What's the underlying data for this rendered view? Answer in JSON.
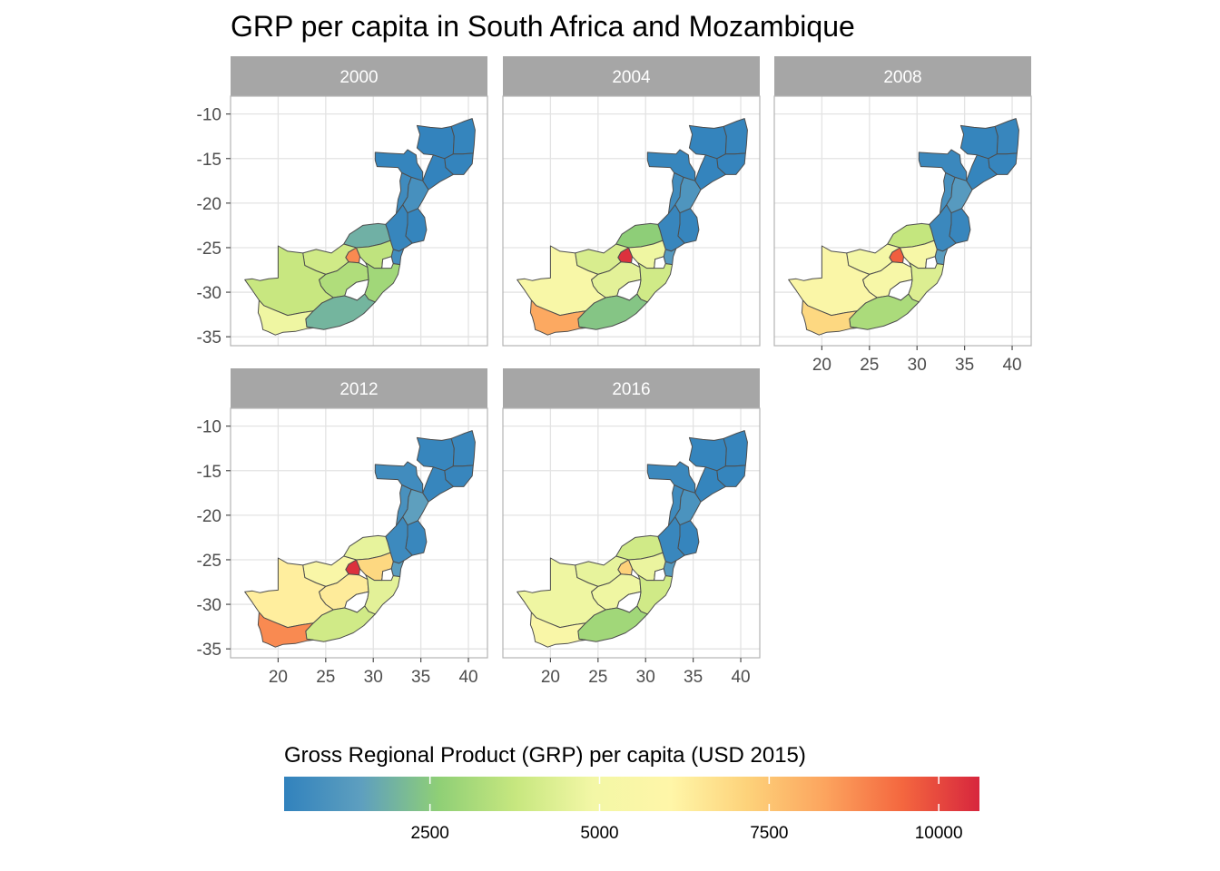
{
  "title": "GRP per capita in South Africa and Mozambique",
  "chart_data": {
    "type": "choropleth-facets",
    "title": "GRP per capita in South Africa and Mozambique",
    "xlim": [
      15,
      42
    ],
    "ylim": [
      -36,
      -8
    ],
    "x_ticks": [
      20,
      25,
      30,
      35,
      40
    ],
    "x_tick_labels": [
      "20",
      "25",
      "30",
      "35",
      "40"
    ],
    "y_ticks": [
      -10,
      -15,
      -20,
      -25,
      -30,
      -35
    ],
    "y_tick_labels": [
      "-10",
      "-15",
      "-20",
      "-25",
      "-30",
      "-35"
    ],
    "grid": true,
    "legend": {
      "title": "Gross Regional Product (GRP) per capita (USD 2015)",
      "placement": "bottom",
      "min": 350,
      "max": 10600,
      "ticks": [
        2500,
        5000,
        7500,
        10000
      ],
      "tick_labels": [
        "2500",
        "5000",
        "7500",
        "10000"
      ],
      "palette": [
        "#3182bd",
        "#5e9fbf",
        "#8fcf76",
        "#c7e77f",
        "#f3f7a6",
        "#fff6a8",
        "#fdd27a",
        "#fca45e",
        "#f4673f",
        "#d7263d"
      ]
    },
    "facets": [
      {
        "label": "2000",
        "values": {
          "Niassa": 400,
          "Cabo Delgado": 450,
          "Nampula": 420,
          "Tete": 450,
          "Zambezia": 400,
          "Manica": 700,
          "Sofala": 900,
          "Inhambane": 450,
          "Gaza": 500,
          "Maputo": 800,
          "Western Cape": 4800,
          "Northern Cape": 3800,
          "Eastern Cape": 2000,
          "Free State": 3300,
          "KwaZulu-Natal": 3000,
          "North West": 4000,
          "Gauteng": 8800,
          "Mpumalanga": 3600,
          "Limpopo": 1900
        }
      },
      {
        "label": "2004",
        "values": {
          "Niassa": 420,
          "Cabo Delgado": 480,
          "Nampula": 440,
          "Tete": 500,
          "Zambezia": 420,
          "Manica": 750,
          "Sofala": 1100,
          "Inhambane": 480,
          "Gaza": 520,
          "Maputo": 1300,
          "Western Cape": 8200,
          "Northern Cape": 5400,
          "Eastern Cape": 2400,
          "Free State": 4500,
          "KwaZulu-Natal": 4000,
          "North West": 4200,
          "Gauteng": 10400,
          "Mpumalanga": 4800,
          "Limpopo": 2600
        }
      },
      {
        "label": "2008",
        "values": {
          "Niassa": 450,
          "Cabo Delgado": 520,
          "Nampula": 480,
          "Tete": 600,
          "Zambezia": 450,
          "Manica": 900,
          "Sofala": 1300,
          "Inhambane": 520,
          "Gaza": 600,
          "Maputo": 1400,
          "Western Cape": 7000,
          "Northern Cape": 5600,
          "Eastern Cape": 3200,
          "Free State": 5300,
          "KwaZulu-Natal": 4300,
          "North West": 5000,
          "Gauteng": 9600,
          "Mpumalanga": 5300,
          "Limpopo": 3700
        }
      },
      {
        "label": "2012",
        "values": {
          "Niassa": 500,
          "Cabo Delgado": 560,
          "Nampula": 520,
          "Tete": 750,
          "Zambezia": 500,
          "Manica": 950,
          "Sofala": 1500,
          "Inhambane": 560,
          "Gaza": 650,
          "Maputo": 1400,
          "Western Cape": 8800,
          "Northern Cape": 6300,
          "Eastern Cape": 4000,
          "Free State": 6400,
          "KwaZulu-Natal": 4500,
          "North West": 5500,
          "Gauteng": 10400,
          "Mpumalanga": 7000,
          "Limpopo": 4600
        }
      },
      {
        "label": "2016",
        "values": {
          "Niassa": 450,
          "Cabo Delgado": 480,
          "Nampula": 450,
          "Tete": 600,
          "Zambezia": 450,
          "Manica": 700,
          "Sofala": 1000,
          "Inhambane": 480,
          "Gaza": 550,
          "Maputo": 1300,
          "Western Cape": 5500,
          "Northern Cape": 4800,
          "Eastern Cape": 3000,
          "Free State": 4800,
          "KwaZulu-Natal": 4000,
          "North West": 4600,
          "Gauteng": 7200,
          "Mpumalanga": 4700,
          "Limpopo": 4000
        }
      }
    ]
  }
}
